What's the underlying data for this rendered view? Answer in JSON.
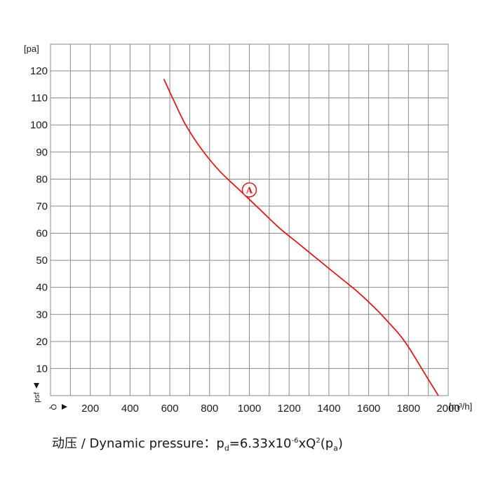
{
  "chart_data": {
    "type": "line",
    "y_unit": "[pa]",
    "x_unit": "[m³/h]",
    "y_axis_tag": "psf",
    "x_axis_tag": "Q",
    "xlim": [
      0,
      2000
    ],
    "ylim": [
      0,
      120
    ],
    "x_ticks": [
      "200",
      "400",
      "600",
      "800",
      "1000",
      "1200",
      "1400",
      "1600",
      "1800",
      "2000"
    ],
    "y_ticks": [
      "10",
      "20",
      "30",
      "40",
      "50",
      "60",
      "70",
      "80",
      "90",
      "100",
      "110",
      "120"
    ],
    "grid": true,
    "grid_x_step": 100,
    "grid_y_step": 10,
    "curve_color": "#e01b1b",
    "series": [
      {
        "x": [
          570,
          620,
          680,
          760,
          850,
          950,
          1050,
          1150,
          1250,
          1350,
          1450,
          1550,
          1650,
          1700,
          1750,
          1800,
          1850,
          1900,
          1950
        ],
        "y": [
          117,
          109,
          100,
          91,
          83,
          76,
          69,
          62,
          56,
          50,
          44,
          38,
          31,
          27,
          23,
          18,
          12,
          6,
          0
        ]
      }
    ],
    "annotations": [
      {
        "label": "A",
        "x": 1000,
        "y": 76
      }
    ]
  },
  "caption": {
    "title": "动压 / Dynamic pressure：",
    "p": "p",
    "p_sub": "d",
    "formula": "=6.33x10",
    "exp": "-6",
    "xq": "xQ",
    "q_sup": "2",
    "paren_open": "(p",
    "pa_sub": "a",
    "paren_close": ")"
  }
}
